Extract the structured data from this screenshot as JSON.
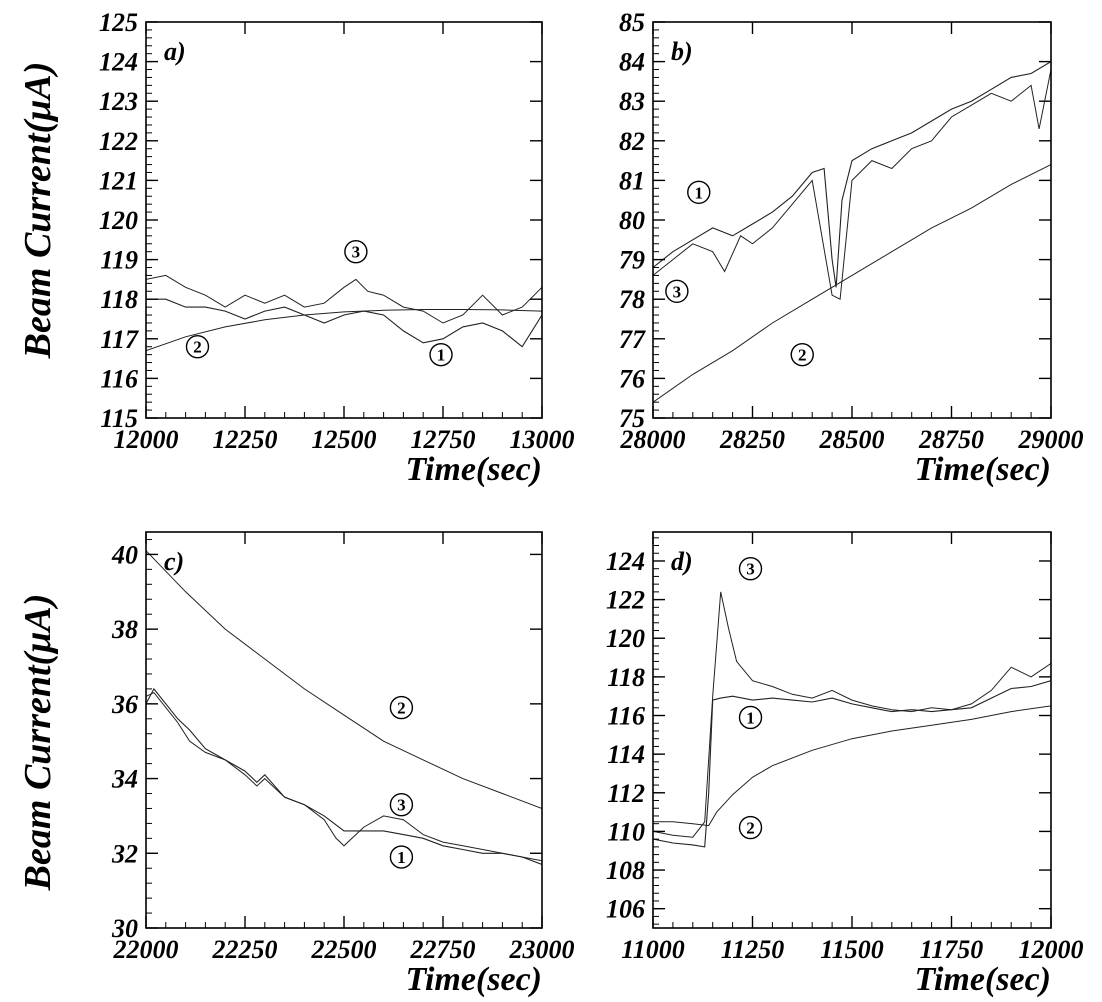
{
  "chart_data": [
    {
      "type": "line",
      "panel_label": "a)",
      "xlabel": "Time(sec)",
      "ylabel": "Beam Current(μA)",
      "xlim": [
        12000,
        13000
      ],
      "ylim": [
        115,
        125
      ],
      "x_ticks": [
        "12000",
        "12250",
        "12500",
        "12750",
        "13000"
      ],
      "y_ticks": [
        "115",
        "116",
        "117",
        "118",
        "119",
        "120",
        "121",
        "122",
        "123",
        "124",
        "125"
      ],
      "series": [
        {
          "name": "1",
          "x": [
            12000,
            12050,
            12100,
            12150,
            12200,
            12250,
            12300,
            12350,
            12400,
            12450,
            12500,
            12550,
            12600,
            12650,
            12700,
            12750,
            12800,
            12850,
            12900,
            12950,
            13000
          ],
          "y": [
            118.0,
            118.0,
            117.8,
            117.8,
            117.7,
            117.5,
            117.7,
            117.8,
            117.6,
            117.4,
            117.6,
            117.7,
            117.6,
            117.2,
            116.9,
            117.0,
            117.3,
            117.4,
            117.2,
            116.8,
            117.6
          ]
        },
        {
          "name": "2",
          "x": [
            12000,
            12100,
            12200,
            12300,
            12400,
            12500,
            12600,
            12700,
            12800,
            12900,
            13000
          ],
          "y": [
            116.7,
            117.05,
            117.3,
            117.48,
            117.6,
            117.68,
            117.72,
            117.74,
            117.74,
            117.73,
            117.7
          ]
        },
        {
          "name": "3",
          "x": [
            12000,
            12050,
            12100,
            12150,
            12200,
            12250,
            12300,
            12350,
            12400,
            12450,
            12500,
            12530,
            12560,
            12600,
            12650,
            12700,
            12750,
            12800,
            12850,
            12900,
            12950,
            13000
          ],
          "y": [
            118.5,
            118.6,
            118.3,
            118.1,
            117.8,
            118.1,
            117.9,
            118.1,
            117.8,
            117.9,
            118.3,
            118.5,
            118.2,
            118.1,
            117.8,
            117.7,
            117.4,
            117.6,
            118.1,
            117.6,
            117.8,
            118.3
          ]
        }
      ],
      "tags": [
        {
          "label": "1",
          "x": 12745,
          "y": 116.6
        },
        {
          "label": "2",
          "x": 12130,
          "y": 116.8
        },
        {
          "label": "3",
          "x": 12530,
          "y": 119.2
        }
      ]
    },
    {
      "type": "line",
      "panel_label": "b)",
      "xlabel": "Time(sec)",
      "ylabel": "",
      "xlim": [
        28000,
        29000
      ],
      "ylim": [
        75,
        85
      ],
      "x_ticks": [
        "28000",
        "28250",
        "28500",
        "28750",
        "29000"
      ],
      "y_ticks": [
        "75",
        "76",
        "77",
        "78",
        "79",
        "80",
        "81",
        "82",
        "83",
        "84",
        "85"
      ],
      "series": [
        {
          "name": "1",
          "x": [
            28000,
            28050,
            28100,
            28150,
            28200,
            28250,
            28300,
            28350,
            28400,
            28430,
            28450,
            28460,
            28475,
            28500,
            28550,
            28600,
            28650,
            28700,
            28750,
            28800,
            28850,
            28900,
            28950,
            29000
          ],
          "y": [
            78.8,
            79.2,
            79.5,
            79.8,
            79.6,
            79.9,
            80.2,
            80.6,
            81.2,
            81.3,
            79.0,
            78.3,
            80.5,
            81.5,
            81.8,
            82.0,
            82.2,
            82.5,
            82.8,
            83.0,
            83.3,
            83.6,
            83.7,
            84.0
          ]
        },
        {
          "name": "2",
          "x": [
            28000,
            28100,
            28200,
            28300,
            28400,
            28500,
            28600,
            28700,
            28800,
            28900,
            29000
          ],
          "y": [
            75.4,
            76.1,
            76.7,
            77.4,
            78.0,
            78.6,
            79.2,
            79.8,
            80.3,
            80.9,
            81.4
          ]
        },
        {
          "name": "3",
          "x": [
            28000,
            28050,
            28100,
            28150,
            28180,
            28220,
            28250,
            28300,
            28350,
            28400,
            28450,
            28470,
            28500,
            28550,
            28600,
            28650,
            28700,
            28750,
            28800,
            28850,
            28900,
            28950,
            28970,
            29000
          ],
          "y": [
            78.6,
            79.0,
            79.4,
            79.2,
            78.7,
            79.6,
            79.4,
            79.8,
            80.4,
            81.0,
            78.1,
            78.0,
            81.0,
            81.5,
            81.3,
            81.8,
            82.0,
            82.6,
            82.9,
            83.2,
            83.0,
            83.4,
            82.3,
            83.8
          ]
        }
      ],
      "tags": [
        {
          "label": "1",
          "x": 28115,
          "y": 80.7
        },
        {
          "label": "2",
          "x": 28375,
          "y": 76.6
        },
        {
          "label": "3",
          "x": 28060,
          "y": 78.2
        }
      ]
    },
    {
      "type": "line",
      "panel_label": "c)",
      "xlabel": "Time(sec)",
      "ylabel": "Beam Current(μA)",
      "xlim": [
        22000,
        23000
      ],
      "ylim": [
        30,
        40.6
      ],
      "x_ticks": [
        "22000",
        "22250",
        "22500",
        "22750",
        "23000"
      ],
      "y_ticks": [
        "30",
        "32",
        "34",
        "36",
        "38",
        "40"
      ],
      "series": [
        {
          "name": "1",
          "x": [
            22000,
            22020,
            22050,
            22080,
            22110,
            22150,
            22200,
            22250,
            22280,
            22300,
            22350,
            22400,
            22450,
            22500,
            22550,
            22600,
            22650,
            22700,
            22750,
            22800,
            22850,
            22900,
            22950,
            23000
          ],
          "y": [
            36.0,
            36.4,
            36.0,
            35.6,
            35.3,
            34.8,
            34.5,
            34.2,
            33.9,
            34.1,
            33.5,
            33.3,
            33.0,
            32.6,
            32.6,
            32.6,
            32.5,
            32.4,
            32.2,
            32.1,
            32.0,
            32.0,
            31.9,
            31.7
          ]
        },
        {
          "name": "2",
          "x": [
            22000,
            22100,
            22200,
            22300,
            22400,
            22500,
            22600,
            22700,
            22800,
            22900,
            23000
          ],
          "y": [
            40.1,
            39.0,
            38.0,
            37.2,
            36.4,
            35.7,
            35.0,
            34.5,
            34.0,
            33.6,
            33.2
          ]
        },
        {
          "name": "3",
          "x": [
            22000,
            22020,
            22050,
            22080,
            22110,
            22150,
            22200,
            22250,
            22280,
            22300,
            22350,
            22400,
            22450,
            22480,
            22500,
            22550,
            22600,
            22650,
            22700,
            22750,
            22800,
            22850,
            22900,
            22950,
            23000
          ],
          "y": [
            36.2,
            36.3,
            35.9,
            35.5,
            35.0,
            34.7,
            34.5,
            34.1,
            33.8,
            34.0,
            33.5,
            33.3,
            32.9,
            32.4,
            32.2,
            32.7,
            33.0,
            32.9,
            32.5,
            32.3,
            32.2,
            32.1,
            32.0,
            31.9,
            31.8
          ]
        }
      ],
      "tags": [
        {
          "label": "1",
          "x": 22645,
          "y": 31.9
        },
        {
          "label": "2",
          "x": 22645,
          "y": 35.9
        },
        {
          "label": "3",
          "x": 22645,
          "y": 33.3
        }
      ]
    },
    {
      "type": "line",
      "panel_label": "d)",
      "xlabel": "Time(sec)",
      "ylabel": "",
      "xlim": [
        11000,
        12000
      ],
      "ylim": [
        105,
        125.5
      ],
      "x_ticks": [
        "11000",
        "11250",
        "11500",
        "11750",
        "12000"
      ],
      "y_ticks": [
        "106",
        "108",
        "110",
        "112",
        "114",
        "116",
        "118",
        "120",
        "122",
        "124"
      ],
      "series": [
        {
          "name": "1",
          "x": [
            11000,
            11050,
            11100,
            11130,
            11140,
            11150,
            11170,
            11200,
            11250,
            11300,
            11350,
            11400,
            11450,
            11500,
            11550,
            11600,
            11650,
            11700,
            11750,
            11800,
            11850,
            11900,
            11950,
            12000
          ],
          "y": [
            109.6,
            109.4,
            109.3,
            109.2,
            112.0,
            116.8,
            116.9,
            117.0,
            116.8,
            116.9,
            116.8,
            116.7,
            116.9,
            116.6,
            116.4,
            116.2,
            116.3,
            116.2,
            116.3,
            116.4,
            116.9,
            117.4,
            117.5,
            117.8
          ]
        },
        {
          "name": "2",
          "x": [
            11000,
            11050,
            11100,
            11140,
            11160,
            11200,
            11250,
            11300,
            11400,
            11500,
            11600,
            11700,
            11800,
            11900,
            12000
          ],
          "y": [
            110.5,
            110.5,
            110.4,
            110.3,
            111.0,
            111.9,
            112.8,
            113.4,
            114.2,
            114.8,
            115.2,
            115.5,
            115.8,
            116.2,
            116.5
          ]
        },
        {
          "name": "3",
          "x": [
            11000,
            11050,
            11100,
            11130,
            11150,
            11170,
            11190,
            11210,
            11250,
            11300,
            11350,
            11400,
            11450,
            11500,
            11550,
            11600,
            11650,
            11700,
            11750,
            11800,
            11850,
            11900,
            11950,
            12000
          ],
          "y": [
            110.0,
            109.8,
            109.7,
            110.5,
            117.0,
            122.4,
            120.5,
            118.8,
            117.8,
            117.5,
            117.1,
            116.9,
            117.3,
            116.8,
            116.5,
            116.3,
            116.2,
            116.4,
            116.3,
            116.6,
            117.3,
            118.5,
            118.0,
            118.7
          ]
        }
      ],
      "tags": [
        {
          "label": "1",
          "x": 11245,
          "y": 115.9
        },
        {
          "label": "2",
          "x": 11245,
          "y": 110.2
        },
        {
          "label": "3",
          "x": 11245,
          "y": 123.6
        }
      ]
    }
  ]
}
